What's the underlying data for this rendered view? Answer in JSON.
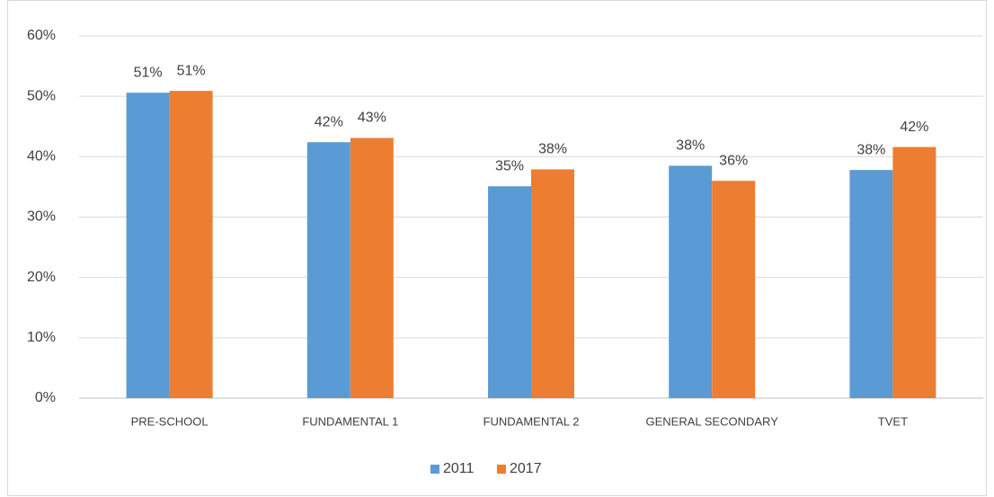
{
  "chart_data": {
    "type": "bar",
    "categories": [
      "PRE-SCHOOL",
      "FUNDAMENTAL 1",
      "FUNDAMENTAL 2",
      "GENERAL SECONDARY",
      "TVET"
    ],
    "series": [
      {
        "name": "2011",
        "color": "#5b9bd5",
        "values": [
          50.6,
          42.4,
          35.1,
          38.5,
          37.8
        ],
        "value_labels": [
          "51%",
          "42%",
          "35%",
          "38%",
          "38%"
        ]
      },
      {
        "name": "2017",
        "color": "#ed7d31",
        "values": [
          50.9,
          43.1,
          37.9,
          36.0,
          41.6
        ],
        "value_labels": [
          "51%",
          "43%",
          "38%",
          "36%",
          "42%"
        ]
      }
    ],
    "ylim": [
      0,
      60
    ],
    "yticks": [
      {
        "value": 0,
        "label": "0%"
      },
      {
        "value": 10,
        "label": "10%"
      },
      {
        "value": 20,
        "label": "20%"
      },
      {
        "value": 30,
        "label": "30%"
      },
      {
        "value": 40,
        "label": "40%"
      },
      {
        "value": 50,
        "label": "50%"
      },
      {
        "value": 60,
        "label": "60%"
      }
    ],
    "grid": true,
    "legend": "bottom"
  }
}
